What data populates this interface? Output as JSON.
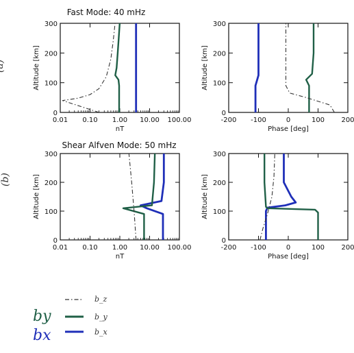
{
  "colors": {
    "bx": "#1f2fb8",
    "by": "#1f5f46",
    "bz": "#333333",
    "axis": "#111111"
  },
  "handwritten": {
    "a": "(a)",
    "b": "(b)"
  },
  "legend": [
    {
      "key": "bz",
      "style": "dashdot",
      "label": "b_z",
      "annotation": ""
    },
    {
      "key": "by",
      "style": "solid",
      "label": "b_y",
      "annotation": "by"
    },
    {
      "key": "bx",
      "style": "solid",
      "label": "b_x",
      "annotation": "bx"
    }
  ],
  "chart_data": [
    {
      "type": "line",
      "title": "Fast Mode: 40 mHz",
      "xlabel": "nT",
      "ylabel": "Altitude [km]",
      "xscale": "log",
      "xlim": [
        0.01,
        100
      ],
      "ylim": [
        0,
        300
      ],
      "xticks": [
        "0.01",
        "0.10",
        "1.00",
        "10.00",
        "100.00"
      ],
      "xtickvals": [
        0.01,
        0.1,
        1,
        10,
        100
      ],
      "yticks": [
        "0",
        "100",
        "200",
        "300"
      ],
      "ytickvals": [
        0,
        100,
        200,
        300
      ],
      "series": [
        {
          "name": "b_x",
          "key": "bx",
          "points": [
            [
              3.5,
              0
            ],
            [
              3.5,
              100
            ],
            [
              3.5,
              200
            ],
            [
              3.5,
              305
            ]
          ]
        },
        {
          "name": "b_y",
          "key": "by",
          "points": [
            [
              0.95,
              0
            ],
            [
              0.95,
              90
            ],
            [
              0.9,
              110
            ],
            [
              0.7,
              125
            ],
            [
              0.78,
              150
            ],
            [
              0.85,
              200
            ],
            [
              0.92,
              250
            ],
            [
              1.0,
              305
            ]
          ]
        },
        {
          "name": "b_z",
          "key": "bz",
          "points": [
            [
              0.2,
              0
            ],
            [
              0.012,
              40
            ],
            [
              0.04,
              48
            ],
            [
              0.1,
              60
            ],
            [
              0.2,
              80
            ],
            [
              0.35,
              120
            ],
            [
              0.5,
              180
            ],
            [
              0.6,
              240
            ],
            [
              0.7,
              305
            ]
          ]
        }
      ]
    },
    {
      "type": "line",
      "title": "",
      "xlabel": "Phase [deg]",
      "ylabel": "Altitude [km]",
      "xscale": "linear",
      "xlim": [
        -200,
        200
      ],
      "ylim": [
        0,
        300
      ],
      "xticks": [
        "-200",
        "-100",
        "0",
        "100",
        "200"
      ],
      "xtickvals": [
        -200,
        -100,
        0,
        100,
        200
      ],
      "yticks": [
        "0",
        "100",
        "200",
        "300"
      ],
      "ytickvals": [
        0,
        100,
        200,
        300
      ],
      "series": [
        {
          "name": "b_x",
          "key": "bx",
          "points": [
            [
              -110,
              0
            ],
            [
              -110,
              90
            ],
            [
              -100,
              125
            ],
            [
              -100,
              200
            ],
            [
              -100,
              305
            ]
          ]
        },
        {
          "name": "b_y",
          "key": "by",
          "points": [
            [
              70,
              0
            ],
            [
              70,
              90
            ],
            [
              60,
              110
            ],
            [
              80,
              130
            ],
            [
              85,
              200
            ],
            [
              85,
              305
            ]
          ]
        },
        {
          "name": "b_z",
          "key": "bz",
          "points": [
            [
              155,
              0
            ],
            [
              140,
              25
            ],
            [
              60,
              50
            ],
            [
              5,
              65
            ],
            [
              -8,
              90
            ],
            [
              -8,
              200
            ],
            [
              -8,
              305
            ]
          ]
        }
      ]
    },
    {
      "type": "line",
      "title": "Shear Alfven Mode: 50 mHz",
      "xlabel": "nT",
      "ylabel": "Altitude [km]",
      "xscale": "log",
      "xlim": [
        0.01,
        100
      ],
      "ylim": [
        0,
        300
      ],
      "xticks": [
        "0.01",
        "0.10",
        "1.00",
        "10.00",
        "100.00"
      ],
      "xtickvals": [
        0.01,
        0.1,
        1,
        10,
        100
      ],
      "yticks": [
        "0",
        "100",
        "200",
        "300"
      ],
      "ytickvals": [
        0,
        100,
        200,
        300
      ],
      "series": [
        {
          "name": "b_x",
          "key": "bx",
          "points": [
            [
              28,
              0
            ],
            [
              28,
              90
            ],
            [
              8,
              110
            ],
            [
              5,
              120
            ],
            [
              25,
              135
            ],
            [
              30,
              200
            ],
            [
              30,
              305
            ]
          ]
        },
        {
          "name": "b_y",
          "key": "by",
          "points": [
            [
              6.5,
              0
            ],
            [
              6.5,
              90
            ],
            [
              1.3,
              110
            ],
            [
              12,
              120
            ],
            [
              14,
              200
            ],
            [
              15,
              305
            ]
          ]
        },
        {
          "name": "b_z",
          "key": "bz",
          "points": [
            [
              3.5,
              0
            ],
            [
              3.0,
              100
            ],
            [
              2.5,
              200
            ],
            [
              2.0,
              305
            ]
          ]
        }
      ]
    },
    {
      "type": "line",
      "title": "",
      "xlabel": "Phase [deg]",
      "ylabel": "Altitude [km]",
      "xscale": "linear",
      "xlim": [
        -200,
        200
      ],
      "ylim": [
        0,
        300
      ],
      "xticks": [
        "-200",
        "-100",
        "0",
        "100",
        "200"
      ],
      "xtickvals": [
        -200,
        -100,
        0,
        100,
        200
      ],
      "yticks": [
        "0",
        "100",
        "200",
        "300"
      ],
      "ytickvals": [
        0,
        100,
        200,
        300
      ],
      "series": [
        {
          "name": "b_x",
          "key": "bx",
          "points": [
            [
              -75,
              0
            ],
            [
              -75,
              100
            ],
            [
              -70,
              112
            ],
            [
              -10,
              120
            ],
            [
              25,
              130
            ],
            [
              10,
              150
            ],
            [
              -15,
              200
            ],
            [
              -15,
              305
            ]
          ]
        },
        {
          "name": "b_y",
          "key": "by",
          "points": [
            [
              100,
              0
            ],
            [
              100,
              95
            ],
            [
              90,
              105
            ],
            [
              -70,
              110
            ],
            [
              -75,
              115
            ],
            [
              -80,
              200
            ],
            [
              -80,
              305
            ]
          ]
        },
        {
          "name": "b_z",
          "key": "bz",
          "points": [
            [
              -95,
              0
            ],
            [
              -85,
              40
            ],
            [
              -70,
              90
            ],
            [
              -55,
              150
            ],
            [
              -48,
              220
            ],
            [
              -45,
              305
            ]
          ]
        }
      ]
    }
  ]
}
